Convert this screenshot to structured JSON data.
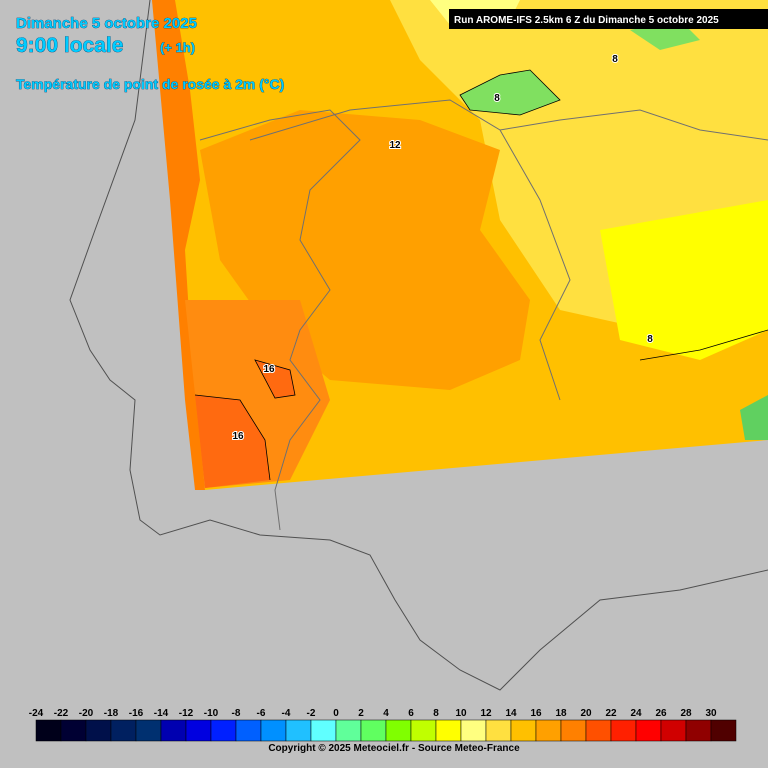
{
  "header": {
    "date": "Dimanche 5 octobre 2025",
    "time": "9:00 locale",
    "offset": "(+ 1h)",
    "variable": "Température de point de rosée à 2m (°C)",
    "run": "Run AROME-IFS 2.5km 6 Z du Dimanche 5 octobre 2025"
  },
  "map": {
    "contour_labels": [
      12,
      8,
      16,
      16,
      8,
      8
    ]
  },
  "legend": {
    "ticks": [
      -24,
      -22,
      -20,
      -18,
      -16,
      -14,
      -12,
      -10,
      -8,
      -6,
      -4,
      -2,
      0,
      2,
      4,
      6,
      8,
      10,
      12,
      14,
      16,
      18,
      20,
      22,
      24,
      26,
      28,
      30
    ],
    "colors": [
      "#00001a",
      "#000033",
      "#00104a",
      "#002060",
      "#003070",
      "#0000b0",
      "#0000e0",
      "#0020ff",
      "#0060ff",
      "#0090ff",
      "#20c0ff",
      "#60ffff",
      "#60ff9a",
      "#60ff60",
      "#80ff00",
      "#c0ff00",
      "#ffff00",
      "#ffff80",
      "#ffe040",
      "#ffc000",
      "#ffa000",
      "#ff8000",
      "#ff5000",
      "#ff2000",
      "#ff0000",
      "#d00000",
      "#900000",
      "#500000"
    ]
  },
  "footer": "Copyright © 2025 Meteociel.fr - Source Meteo-France"
}
